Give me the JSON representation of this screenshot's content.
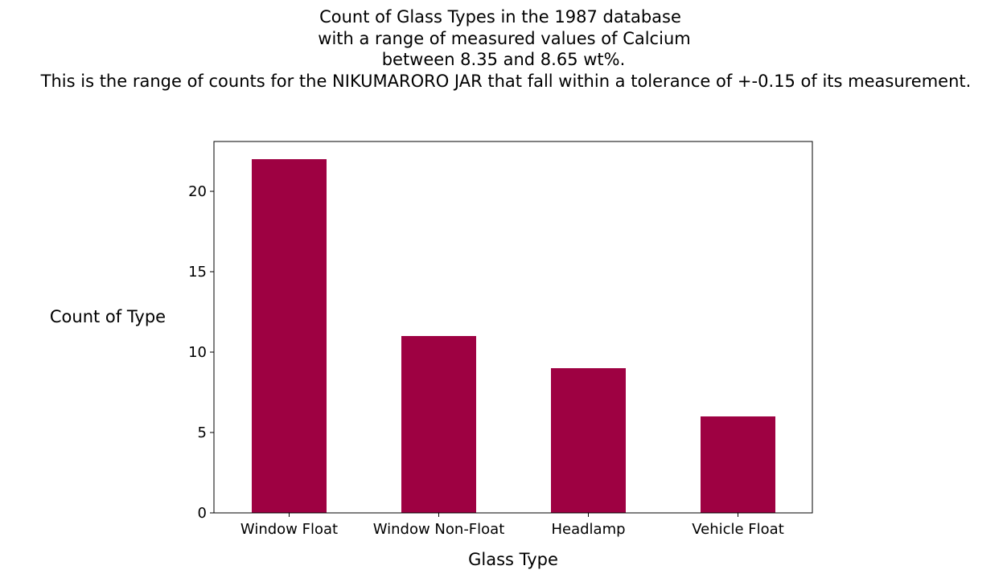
{
  "chart_data": {
    "type": "bar",
    "title_lines": [
      "Count of Glass Types in the 1987 database",
      "with a range of measured values of Calcium",
      "between 8.35 and 8.65 wt%.",
      "This is the range of counts for the NIKUMARORO JAR that fall within a tolerance of +-0.15 of its measurement."
    ],
    "xlabel": "Glass Type",
    "ylabel": "Count of Type",
    "categories": [
      "Window Float",
      "Window Non-Float",
      "Headlamp",
      "Vehicle Float"
    ],
    "values": [
      22,
      11,
      9,
      6
    ],
    "yticks": [
      0,
      5,
      10,
      15,
      20
    ],
    "ylim": [
      0,
      23.1
    ],
    "grid": false,
    "legend": "none",
    "bar_color": "#9e0142"
  }
}
